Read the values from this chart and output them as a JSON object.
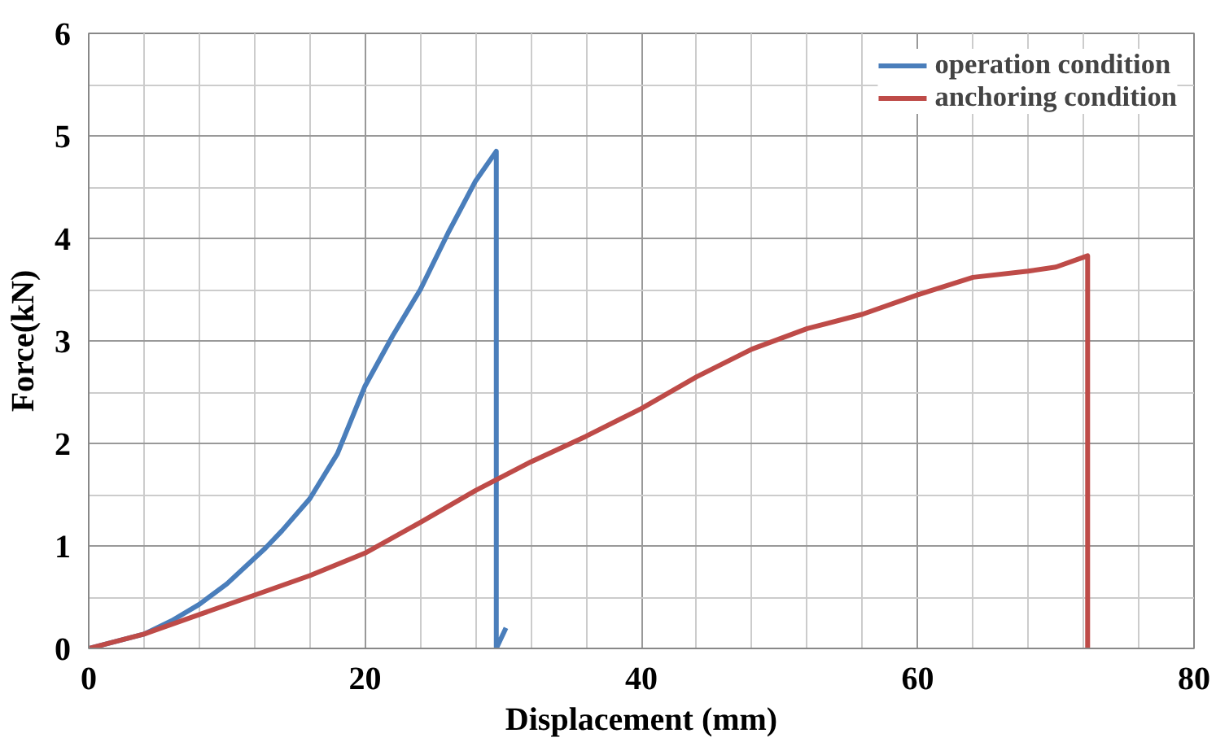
{
  "chart_data": {
    "type": "line",
    "xlabel": "Displacement (mm)",
    "ylabel": "Force(kN)",
    "xlim": [
      0,
      80
    ],
    "ylim": [
      0,
      6
    ],
    "xticks": [
      0,
      20,
      40,
      60,
      80
    ],
    "yticks": [
      0,
      1,
      2,
      3,
      4,
      5,
      6
    ],
    "grid": true,
    "legend": "top right",
    "marker": "none",
    "line_style": "solid",
    "series": [
      {
        "name": "operation condition",
        "color": "#4a7ebb",
        "x": [
          0,
          4,
          6,
          8,
          10,
          12.8,
          14,
          16,
          18,
          20,
          22,
          24,
          26,
          28,
          29.5,
          29.5,
          30.2
        ],
        "values": [
          0,
          0.14,
          0.27,
          0.43,
          0.63,
          0.98,
          1.15,
          1.46,
          1.9,
          2.56,
          3.05,
          3.5,
          4.05,
          4.56,
          4.85,
          0,
          0.2
        ]
      },
      {
        "name": "anchoring condition",
        "color": "#be4b48",
        "x": [
          0,
          4,
          8,
          12,
          16,
          20,
          24,
          28,
          32,
          36,
          40,
          44,
          48,
          52,
          56,
          60,
          64,
          68,
          70,
          72.3,
          72.3
        ],
        "values": [
          0,
          0.14,
          0.33,
          0.52,
          0.71,
          0.93,
          1.23,
          1.54,
          1.82,
          2.07,
          2.34,
          2.65,
          2.92,
          3.12,
          3.26,
          3.45,
          3.62,
          3.68,
          3.72,
          3.83,
          0
        ]
      }
    ]
  }
}
